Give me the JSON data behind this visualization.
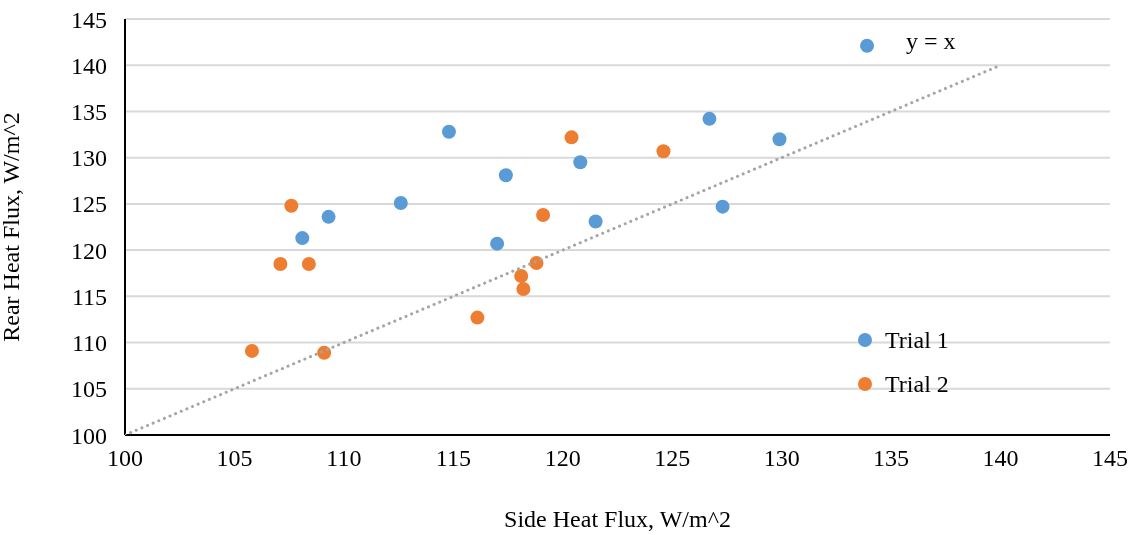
{
  "chart_data": {
    "type": "scatter",
    "xlabel": "Side Heat Flux, W/m^2",
    "ylabel": "Rear Heat Flux, W/m^2",
    "xlim": [
      100,
      145
    ],
    "xticks": [
      100,
      105,
      110,
      115,
      120,
      125,
      130,
      135,
      140,
      145
    ],
    "ylim": [
      100,
      145
    ],
    "yticks": [
      100,
      105,
      110,
      115,
      120,
      125,
      130,
      135,
      140,
      145
    ],
    "grid": "y",
    "legend": "bottom right",
    "marker": "circle",
    "annotations": [
      "y = x"
    ],
    "series": [
      {
        "name": "Trial 1",
        "color": "#5b9bd5",
        "x": [
          133.9,
          112.6,
          109.3,
          108.1,
          117.4,
          117.0,
          114.8,
          120.8,
          126.7,
          129.9,
          127.3,
          121.5
        ],
        "values": [
          142.1,
          125.1,
          123.6,
          121.3,
          128.1,
          120.7,
          132.8,
          129.5,
          134.2,
          132.0,
          124.7,
          123.1
        ]
      },
      {
        "name": "Trial 2",
        "color": "#ed7d31",
        "x": [
          107.6,
          107.1,
          108.4,
          105.8,
          109.1,
          116.1,
          119.1,
          120.4,
          124.6,
          118.8,
          118.1,
          118.2
        ],
        "values": [
          124.8,
          118.5,
          118.5,
          109.1,
          108.9,
          112.7,
          123.8,
          132.2,
          130.7,
          118.6,
          117.2,
          115.8
        ]
      },
      {
        "type": "line",
        "color": "#a5a5a5",
        "line_style": "dotted",
        "marker": "none",
        "x": [
          100,
          140
        ],
        "values": [
          100,
          140
        ]
      }
    ]
  }
}
